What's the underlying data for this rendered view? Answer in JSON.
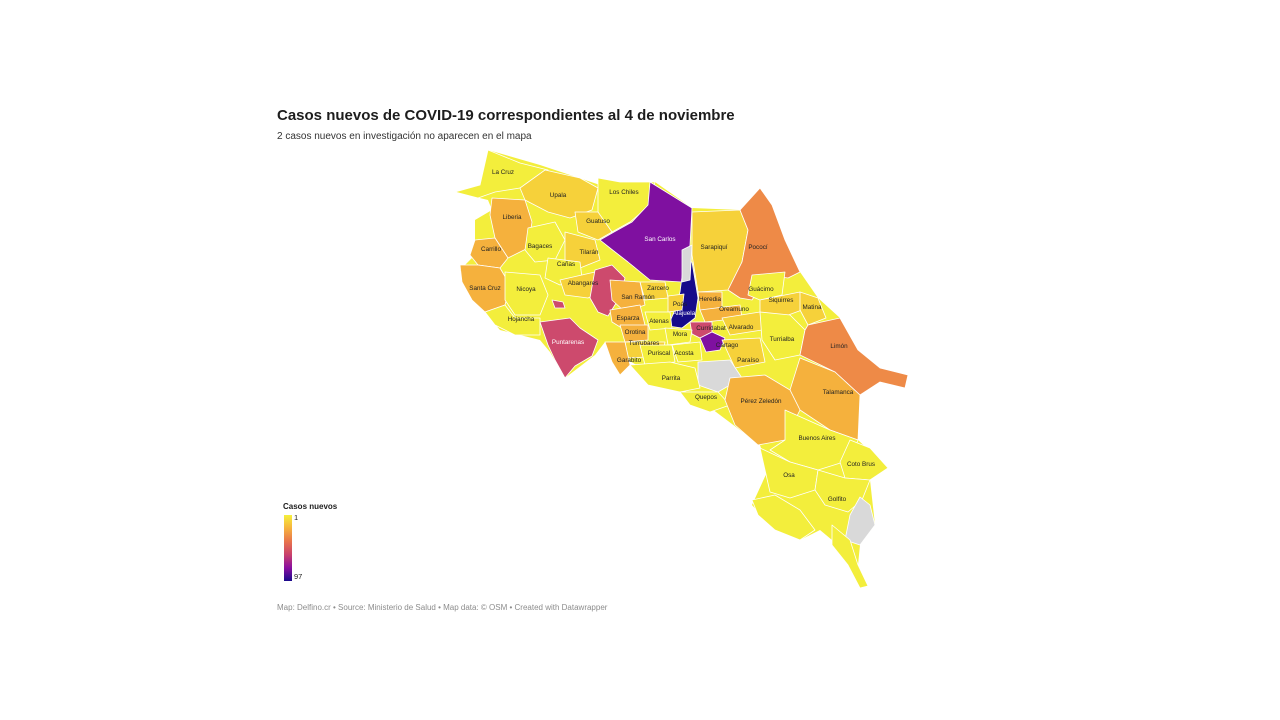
{
  "title": "Casos nuevos de COVID-19 correspondientes al 4 de noviembre",
  "subtitle": "2 casos nuevos en investigación no aparecen en el mapa",
  "legend": {
    "title": "Casos nuevos",
    "min": "1",
    "max": "97",
    "gradient": [
      "#f5f03b",
      "#f6b23e",
      "#e8734c",
      "#c9416c",
      "#8a0ea0",
      "#1a0a8c"
    ]
  },
  "footer": "Map: Delfino.cr • Source: Ministerio de Salud • Map data: © OSM • Created with Datawrapper",
  "colors": {
    "no_data": "#d9d9d9",
    "yellow": "#f3ee3c",
    "yellow_orange": "#f6d13a",
    "light_orange": "#f5b13d",
    "orange": "#ee8a47",
    "pink": "#cd4a6d",
    "purple": "#7f10a0",
    "navy": "#160b8a"
  },
  "cantons": {
    "la_cruz": "La Cruz",
    "upala": "Upala",
    "los_chiles": "Los Chiles",
    "liberia": "Liberia",
    "guatuso": "Guatuso",
    "san_carlos": "San Carlos",
    "sarapiqui": "Sarapiquí",
    "pococi": "Pococí",
    "carrillo": "Carrillo",
    "bagaces": "Bagaces",
    "tilaran": "Tilarán",
    "canas": "Cañas",
    "abangares": "Abangares",
    "santa_cruz": "Santa Cruz",
    "nicoya": "Nicoya",
    "zarcero": "Zarcero",
    "san_ramon": "San Ramón",
    "heredia": "Heredia",
    "guacimo": "Guácimo",
    "siquirres": "Siquirres",
    "matina": "Matina",
    "hojancha": "Hojancha",
    "esparza": "Esparza",
    "poas": "Poás",
    "alajuela": "Alajuela",
    "oreamuno": "Oreamuno",
    "atenas": "Atenas",
    "orotina": "Orotina",
    "curridabat": "Curridabat",
    "alvarado": "Alvarado",
    "turrialba": "Turrialba",
    "puntarenas": "Puntarenas",
    "mora": "Mora",
    "cartago": "Cartago",
    "limon": "Limón",
    "turrubares": "Turrubares",
    "garabito": "Garabito",
    "puriscal": "Puriscal",
    "acosta": "Acosta",
    "paraiso": "Paraíso",
    "parrita": "Parrita",
    "talamanca": "Talamanca",
    "quepos": "Quepos",
    "perez_zeledon": "Pérez Zeledón",
    "buenos_aires": "Buenos Aires",
    "coto_brus": "Coto Brus",
    "osa": "Osa",
    "golfito": "Golfito"
  }
}
